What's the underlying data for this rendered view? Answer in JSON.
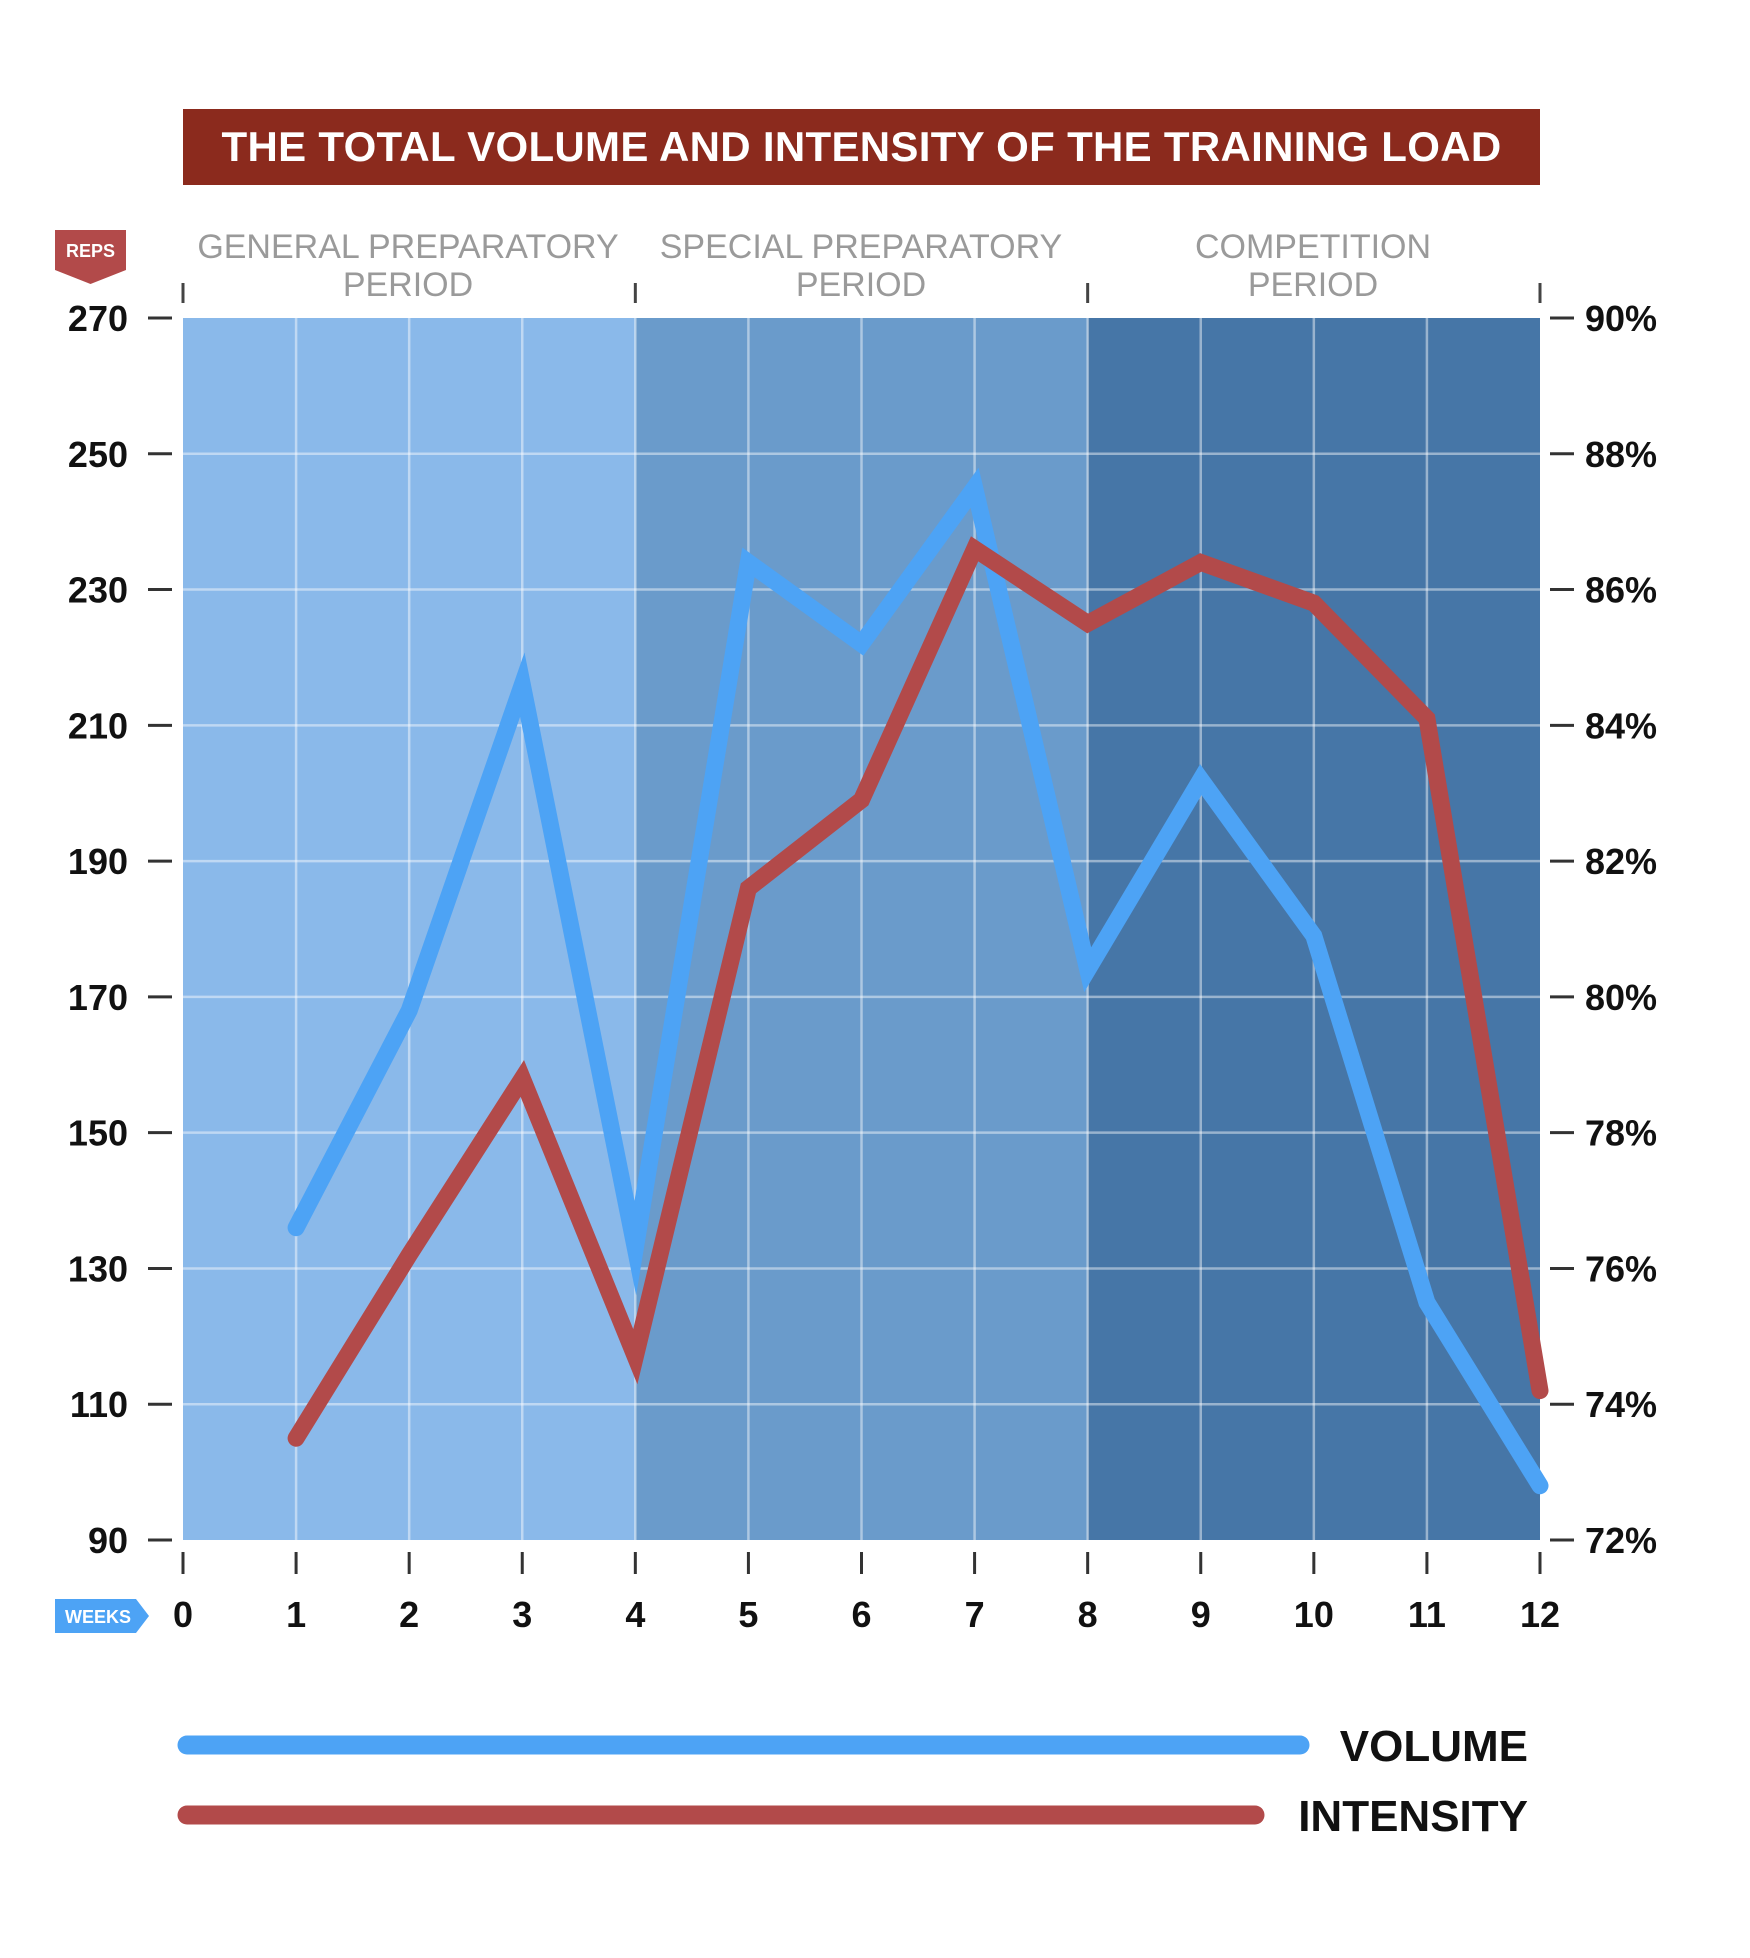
{
  "chart_data": {
    "type": "line",
    "title": "THE TOTAL VOLUME AND INTENSITY OF THE TRAINING LOAD",
    "xlabel": "WEEKS",
    "ylabel": "REPS",
    "x_ticks": [
      "0",
      "1",
      "2",
      "3",
      "4",
      "5",
      "6",
      "7",
      "8",
      "9",
      "10",
      "11",
      "12"
    ],
    "xlim": [
      0,
      12
    ],
    "y_left": {
      "label": "REPS",
      "ylim": [
        90,
        270
      ],
      "ticks": [
        "270",
        "250",
        "230",
        "210",
        "190",
        "170",
        "150",
        "130",
        "110",
        "90"
      ],
      "tick_values": [
        270,
        250,
        230,
        210,
        190,
        170,
        150,
        130,
        110,
        90
      ]
    },
    "y_right": {
      "ylim": [
        72,
        90
      ],
      "ticks": [
        "90%",
        "88%",
        "86%",
        "84%",
        "82%",
        "80%",
        "78%",
        "76%",
        "74%",
        "72%"
      ],
      "tick_values": [
        90,
        88,
        86,
        84,
        82,
        80,
        78,
        76,
        74,
        72
      ]
    },
    "periods": [
      {
        "label": "GENERAL PREPARATORY\nPERIOD",
        "start": 0,
        "end": 4,
        "color": "#8ab9ea"
      },
      {
        "label": "SPECIAL PREPARATORY\nPERIOD",
        "start": 4,
        "end": 8,
        "color": "#6a9bcb"
      },
      {
        "label": "COMPETITION\nPERIOD",
        "start": 8,
        "end": 12,
        "color": "#4676a7"
      }
    ],
    "series": [
      {
        "name": "VOLUME",
        "axis": "left",
        "color": "#4da3f5",
        "x": [
          1,
          2,
          3,
          4,
          5,
          6,
          7,
          8,
          9,
          10,
          11,
          12
        ],
        "values": [
          136,
          168,
          216,
          133,
          234,
          222,
          245,
          174,
          202,
          179,
          125,
          98
        ]
      },
      {
        "name": "INTENSITY",
        "axis": "right",
        "color": "#b24a4a",
        "x": [
          1,
          2,
          3,
          4,
          5,
          6,
          7,
          8,
          9,
          10,
          11,
          12
        ],
        "values": [
          73.5,
          76.2,
          78.8,
          74.7,
          81.6,
          82.9,
          86.6,
          85.5,
          86.4,
          85.8,
          84.1,
          74.2
        ]
      }
    ],
    "legend": {
      "position": "bottom",
      "entries": [
        "VOLUME",
        "INTENSITY"
      ]
    }
  }
}
